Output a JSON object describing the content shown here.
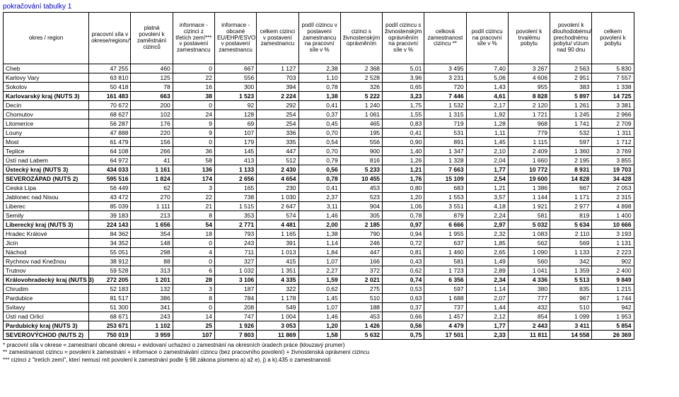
{
  "title": "pokračování tabulky 1",
  "headers": [
    "okres / region",
    "pracovní síla v okrese/regionu*",
    "platná povolení k zaměstnání cizinců",
    "informace - cizinci z třetích zemí*** v postavení zamestnancu",
    "informace - obcané EU/EHP/ESVO v postavení zamestnancu",
    "celkem cizinci v postavení zamestnancu",
    "podíl cizincu v postavení zamestnancu na pracovní síle v %",
    "cizinci s živnostenským oprávněním",
    "podíl cizincu s živnostenským oprávněním na pracovní síle v %",
    "celková zamestnanost cizincu **",
    "podíl cizincu na pracovní síle v %",
    "povolení k trvalému pobytu",
    "povolení k dlouhodobému/ prechodnému pobytu/ vízum nad 90 dnu",
    "celkem povolení k pobytu"
  ],
  "rows": [
    {
      "b": false,
      "c": [
        "Cheb",
        "47 255",
        "460",
        "0",
        "667",
        "1 127",
        "2,38",
        "2 368",
        "5,01",
        "3 495",
        "7,40",
        "3 267",
        "2 563",
        "5 830"
      ]
    },
    {
      "b": false,
      "c": [
        "Karlovy Vary",
        "63 810",
        "125",
        "22",
        "556",
        "703",
        "1,10",
        "2 528",
        "3,96",
        "3 231",
        "5,06",
        "4 606",
        "2 951",
        "7 557"
      ]
    },
    {
      "b": false,
      "c": [
        "Sokolov",
        "50 418",
        "78",
        "16",
        "300",
        "394",
        "0,78",
        "326",
        "0,65",
        "720",
        "1,43",
        "955",
        "383",
        "1 338"
      ]
    },
    {
      "b": true,
      "c": [
        "Karlovarský kraj (NUTS 3)",
        "161 483",
        "663",
        "38",
        "1 523",
        "2 224",
        "1,38",
        "5 222",
        "3,23",
        "7 446",
        "4,61",
        "8 828",
        "5 897",
        "14 725"
      ]
    },
    {
      "b": false,
      "c": [
        "Decín",
        "70 672",
        "200",
        "0",
        "92",
        "292",
        "0,41",
        "1 240",
        "1,75",
        "1 532",
        "2,17",
        "2 120",
        "1 261",
        "3 381"
      ]
    },
    {
      "b": false,
      "c": [
        "Chomutov",
        "68 627",
        "102",
        "24",
        "128",
        "254",
        "0,37",
        "1 061",
        "1,55",
        "1 315",
        "1,92",
        "1 721",
        "1 245",
        "2 966"
      ]
    },
    {
      "b": false,
      "c": [
        "Litomerice",
        "56 287",
        "176",
        "9",
        "69",
        "254",
        "0,45",
        "465",
        "0,83",
        "719",
        "1,28",
        "968",
        "1 741",
        "2 709"
      ]
    },
    {
      "b": false,
      "c": [
        "Louny",
        "47 888",
        "220",
        "9",
        "107",
        "336",
        "0,70",
        "195",
        "0,41",
        "531",
        "1,11",
        "779",
        "532",
        "1 311"
      ]
    },
    {
      "b": false,
      "c": [
        "Most",
        "61 479",
        "156",
        "0",
        "179",
        "335",
        "0,54",
        "556",
        "0,90",
        "891",
        "1,45",
        "1 115",
        "597",
        "1 712"
      ]
    },
    {
      "b": false,
      "c": [
        "Teplice",
        "64 108",
        "266",
        "36",
        "145",
        "447",
        "0,70",
        "900",
        "1,40",
        "1 347",
        "2,10",
        "2 409",
        "1 360",
        "3 769"
      ]
    },
    {
      "b": false,
      "c": [
        "Ústí nad Labem",
        "64 972",
        "41",
        "58",
        "413",
        "512",
        "0,79",
        "816",
        "1,26",
        "1 328",
        "2,04",
        "1 660",
        "2 195",
        "3 855"
      ]
    },
    {
      "b": true,
      "c": [
        "Ústecký kraj (NUTS 3)",
        "434 033",
        "1 161",
        "136",
        "1 133",
        "2 430",
        "0,56",
        "5 233",
        "1,21",
        "7 663",
        "1,77",
        "10 772",
        "8 931",
        "19 703"
      ]
    },
    {
      "b": true,
      "c": [
        "SEVEROZÁPAD (NUTS 2)",
        "595 516",
        "1 824",
        "174",
        "2 656",
        "4 654",
        "0,78",
        "10 455",
        "1,76",
        "15 109",
        "2,54",
        "19 600",
        "14 828",
        "34 428"
      ]
    },
    {
      "b": false,
      "c": [
        "Ceská Lípa",
        "56 449",
        "62",
        "3",
        "165",
        "230",
        "0,41",
        "453",
        "0,80",
        "683",
        "1,21",
        "1 386",
        "667",
        "2 053"
      ]
    },
    {
      "b": false,
      "c": [
        "Jablonec nad Nisou",
        "43 472",
        "270",
        "22",
        "738",
        "1 030",
        "2,37",
        "523",
        "1,20",
        "1 553",
        "3,57",
        "1 144",
        "1 171",
        "2 315"
      ]
    },
    {
      "b": false,
      "c": [
        "Liberec",
        "85 039",
        "1 111",
        "21",
        "1 515",
        "2 647",
        "3,11",
        "904",
        "1,06",
        "3 551",
        "4,18",
        "1 921",
        "2 977",
        "4 898"
      ]
    },
    {
      "b": false,
      "c": [
        "Semily",
        "39 183",
        "213",
        "8",
        "353",
        "574",
        "1,46",
        "305",
        "0,78",
        "879",
        "2,24",
        "581",
        "819",
        "1 400"
      ]
    },
    {
      "b": true,
      "c": [
        "Liberecký kraj (NUTS 3)",
        "224 143",
        "1 656",
        "54",
        "2 771",
        "4 481",
        "2,00",
        "2 185",
        "0,97",
        "6 666",
        "2,97",
        "5 032",
        "5 634",
        "10 666"
      ]
    },
    {
      "b": false,
      "c": [
        "Hradec Králové",
        "84 362",
        "354",
        "18",
        "793",
        "1 165",
        "1,38",
        "790",
        "0,94",
        "1 955",
        "2,32",
        "1 083",
        "2 110",
        "3 193"
      ]
    },
    {
      "b": false,
      "c": [
        "Jicín",
        "34 352",
        "148",
        "0",
        "243",
        "391",
        "1,14",
        "246",
        "0,72",
        "637",
        "1,85",
        "562",
        "569",
        "1 131"
      ]
    },
    {
      "b": false,
      "c": [
        "Náchod",
        "55 051",
        "298",
        "4",
        "711",
        "1 013",
        "1,84",
        "447",
        "0,81",
        "1 460",
        "2,65",
        "1 090",
        "1 133",
        "2 223"
      ]
    },
    {
      "b": false,
      "c": [
        "Rychnov nad Knežnou",
        "38 912",
        "88",
        "0",
        "327",
        "415",
        "1,07",
        "166",
        "0,43",
        "581",
        "1,49",
        "560",
        "342",
        "902"
      ]
    },
    {
      "b": false,
      "c": [
        "Trutnov",
        "59 528",
        "313",
        "6",
        "1 032",
        "1 351",
        "2,27",
        "372",
        "0,62",
        "1 723",
        "2,89",
        "1 041",
        "1 359",
        "2 400"
      ]
    },
    {
      "b": true,
      "c": [
        "Královohradecký kraj (NUTS 3)",
        "272 205",
        "1 201",
        "28",
        "3 106",
        "4 335",
        "1,59",
        "2 021",
        "0,74",
        "6 356",
        "2,34",
        "4 336",
        "5 513",
        "9 849"
      ]
    },
    {
      "b": false,
      "c": [
        "Chrudim",
        "52 183",
        "132",
        "3",
        "187",
        "322",
        "0,62",
        "275",
        "0,53",
        "597",
        "1,14",
        "380",
        "835",
        "1 215"
      ]
    },
    {
      "b": false,
      "c": [
        "Pardubice",
        "81 517",
        "386",
        "8",
        "784",
        "1 178",
        "1,45",
        "510",
        "0,63",
        "1 688",
        "2,07",
        "777",
        "967",
        "1 744"
      ]
    },
    {
      "b": false,
      "c": [
        "Svitavy",
        "51 300",
        "341",
        "0",
        "208",
        "549",
        "1,07",
        "188",
        "0,37",
        "737",
        "1,44",
        "432",
        "510",
        "942"
      ]
    },
    {
      "b": false,
      "c": [
        "Ústí nad Orlicí",
        "68 671",
        "243",
        "14",
        "747",
        "1 004",
        "1,46",
        "453",
        "0,66",
        "1 457",
        "2,12",
        "854",
        "1 099",
        "1 953"
      ]
    },
    {
      "b": true,
      "c": [
        "Pardubický kraj (NUTS 3)",
        "253 671",
        "1 102",
        "25",
        "1 926",
        "3 053",
        "1,20",
        "1 426",
        "0,56",
        "4 479",
        "1,77",
        "2 443",
        "3 411",
        "5 854"
      ]
    },
    {
      "b": true,
      "c": [
        "SEVEROVÝCHOD (NUTS 2)",
        "750 019",
        "3 959",
        "107",
        "7 803",
        "11 869",
        "1,58",
        "5 632",
        "0,75",
        "17 501",
        "2,33",
        "11 811",
        "14 558",
        "26 369"
      ]
    }
  ],
  "footnotes": [
    "* pracovní síla v okrese = zamestnaní obcané okresu + evidovaní uchazeci o zamestnání na okresních úradech práce (klouzavý prumer)",
    "** zamestnanost cizincu = povolení k zamestnání + informace o zamestnávání cizincu (bez pracovního povolení) + živnostenská oprávnení cizincu",
    "*** cizinci z \"tretích zemí\", kterí nemusí mít povolení k zamestnání podle § 98 zákona písmeno a) až e), j) a k).435 o zamestnanosti"
  ]
}
